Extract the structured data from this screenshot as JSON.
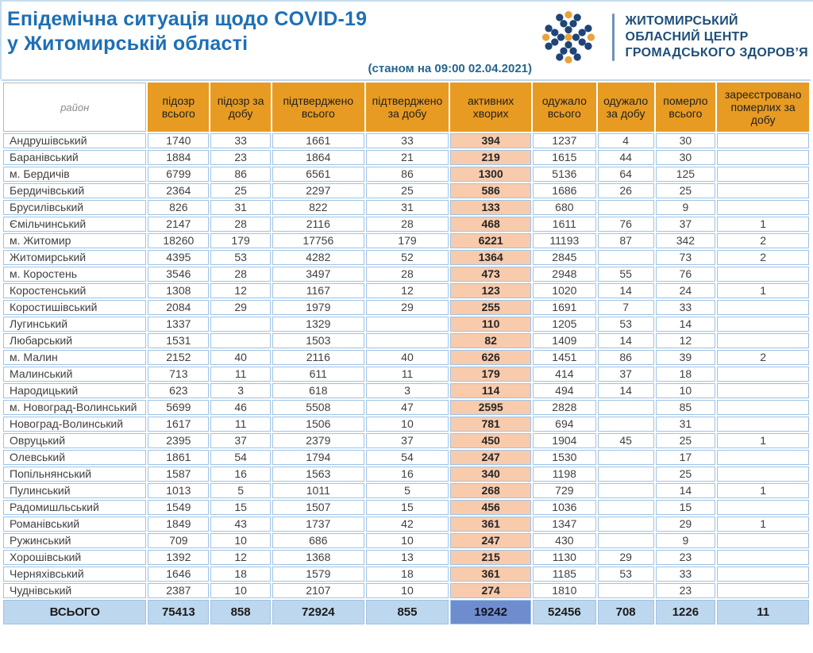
{
  "header": {
    "title_line1": "Епідемічна ситуація щодо COVID-19",
    "title_line2": "у Житомирській області",
    "as_of": "(станом на 09:00 02.04.2021)",
    "logo": {
      "line1": "ЖИТОМИРСЬКИЙ",
      "line2": "ОБЛАСНИЙ ЦЕНТР",
      "line3": "ГРОМАДСЬКОГО ЗДОРОВ’Я"
    }
  },
  "colors": {
    "title_blue": "#1d6fb5",
    "logo_navy": "#1f4e79",
    "logo_dot_blue": "#1f4477",
    "logo_dot_orange": "#e8a33d",
    "header_orange": "#e89b22",
    "grid_blue": "#9dc3e6",
    "active_peach": "#f8cbad",
    "total_blue": "#bdd7ee",
    "total_active_blue": "#6f8dce"
  },
  "table": {
    "headers": [
      "район",
      "підозр всього",
      "підозр за добу",
      "підтверджено всього",
      "підтверджено за добу",
      "активних хворих",
      "одужало всього",
      "одужало за добу",
      "померло всього",
      "зареєстровано померлих за добу"
    ],
    "rows": [
      {
        "district": "Андрушівський",
        "values": [
          "1740",
          "33",
          "1661",
          "33",
          "394",
          "1237",
          "4",
          "30",
          ""
        ]
      },
      {
        "district": "Баранівський",
        "values": [
          "1884",
          "23",
          "1864",
          "21",
          "219",
          "1615",
          "44",
          "30",
          ""
        ]
      },
      {
        "district": "м. Бердичів",
        "values": [
          "6799",
          "86",
          "6561",
          "86",
          "1300",
          "5136",
          "64",
          "125",
          ""
        ]
      },
      {
        "district": "Бердичівський",
        "values": [
          "2364",
          "25",
          "2297",
          "25",
          "586",
          "1686",
          "26",
          "25",
          ""
        ]
      },
      {
        "district": "Брусилівський",
        "values": [
          "826",
          "31",
          "822",
          "31",
          "133",
          "680",
          "",
          "9",
          ""
        ]
      },
      {
        "district": "Ємільчинський",
        "values": [
          "2147",
          "28",
          "2116",
          "28",
          "468",
          "1611",
          "76",
          "37",
          "1"
        ]
      },
      {
        "district": "м. Житомир",
        "values": [
          "18260",
          "179",
          "17756",
          "179",
          "6221",
          "11193",
          "87",
          "342",
          "2"
        ]
      },
      {
        "district": "Житомирський",
        "values": [
          "4395",
          "53",
          "4282",
          "52",
          "1364",
          "2845",
          "",
          "73",
          "2"
        ]
      },
      {
        "district": "м. Коростень",
        "values": [
          "3546",
          "28",
          "3497",
          "28",
          "473",
          "2948",
          "55",
          "76",
          ""
        ]
      },
      {
        "district": "Коростенський",
        "values": [
          "1308",
          "12",
          "1167",
          "12",
          "123",
          "1020",
          "14",
          "24",
          "1"
        ]
      },
      {
        "district": "Коростишівський",
        "values": [
          "2084",
          "29",
          "1979",
          "29",
          "255",
          "1691",
          "7",
          "33",
          ""
        ]
      },
      {
        "district": "Лугинський",
        "values": [
          "1337",
          "",
          "1329",
          "",
          "110",
          "1205",
          "53",
          "14",
          ""
        ]
      },
      {
        "district": "Любарський",
        "values": [
          "1531",
          "",
          "1503",
          "",
          "82",
          "1409",
          "14",
          "12",
          ""
        ]
      },
      {
        "district": "м. Малин",
        "values": [
          "2152",
          "40",
          "2116",
          "40",
          "626",
          "1451",
          "86",
          "39",
          "2"
        ]
      },
      {
        "district": "Малинський",
        "values": [
          "713",
          "11",
          "611",
          "11",
          "179",
          "414",
          "37",
          "18",
          ""
        ]
      },
      {
        "district": "Народицький",
        "values": [
          "623",
          "3",
          "618",
          "3",
          "114",
          "494",
          "14",
          "10",
          ""
        ]
      },
      {
        "district": "м. Новоград-Волинський",
        "values": [
          "5699",
          "46",
          "5508",
          "47",
          "2595",
          "2828",
          "",
          "85",
          ""
        ]
      },
      {
        "district": "Новоград-Волинський",
        "values": [
          "1617",
          "11",
          "1506",
          "10",
          "781",
          "694",
          "",
          "31",
          ""
        ]
      },
      {
        "district": "Овруцький",
        "values": [
          "2395",
          "37",
          "2379",
          "37",
          "450",
          "1904",
          "45",
          "25",
          "1"
        ]
      },
      {
        "district": "Олевський",
        "values": [
          "1861",
          "54",
          "1794",
          "54",
          "247",
          "1530",
          "",
          "17",
          ""
        ]
      },
      {
        "district": "Попільнянський",
        "values": [
          "1587",
          "16",
          "1563",
          "16",
          "340",
          "1198",
          "",
          "25",
          ""
        ]
      },
      {
        "district": "Пулинський",
        "values": [
          "1013",
          "5",
          "1011",
          "5",
          "268",
          "729",
          "",
          "14",
          "1"
        ]
      },
      {
        "district": "Радомишльський",
        "values": [
          "1549",
          "15",
          "1507",
          "15",
          "456",
          "1036",
          "",
          "15",
          ""
        ]
      },
      {
        "district": "Романівський",
        "values": [
          "1849",
          "43",
          "1737",
          "42",
          "361",
          "1347",
          "",
          "29",
          "1"
        ]
      },
      {
        "district": "Ружинський",
        "values": [
          "709",
          "10",
          "686",
          "10",
          "247",
          "430",
          "",
          "9",
          ""
        ]
      },
      {
        "district": "Хорошівський",
        "values": [
          "1392",
          "12",
          "1368",
          "13",
          "215",
          "1130",
          "29",
          "23",
          ""
        ]
      },
      {
        "district": "Черняхівський",
        "values": [
          "1646",
          "18",
          "1579",
          "18",
          "361",
          "1185",
          "53",
          "33",
          ""
        ]
      },
      {
        "district": "Чуднівський",
        "values": [
          "2387",
          "10",
          "2107",
          "10",
          "274",
          "1810",
          "",
          "23",
          ""
        ]
      }
    ],
    "footer": {
      "label": "ВСЬОГО",
      "values": [
        "75413",
        "858",
        "72924",
        "855",
        "19242",
        "52456",
        "708",
        "1226",
        "11"
      ]
    }
  }
}
